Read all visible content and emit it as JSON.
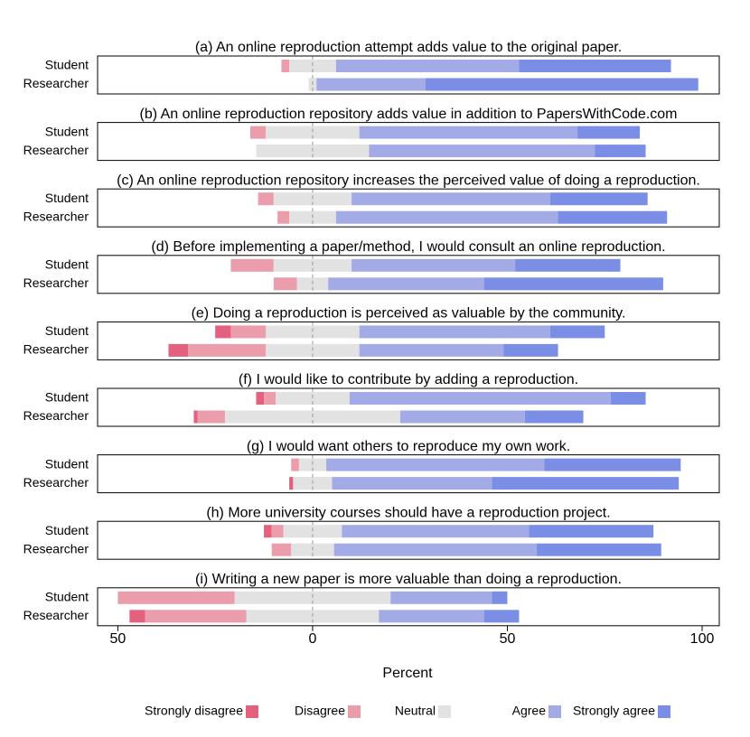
{
  "chart_data": {
    "type": "likert",
    "x_label": "Percent",
    "xlim": [
      -55.2,
      104.4
    ],
    "xticks": [
      {
        "value": -50,
        "label": "50"
      },
      0,
      50,
      100
    ],
    "series": [
      {
        "name": "Strongly disagree",
        "color": "#e4607f"
      },
      {
        "name": "Disagree",
        "color": "#eb9dab"
      },
      {
        "name": "Neutral",
        "color": "#e2e2e2"
      },
      {
        "name": "Agree",
        "color": "#a3abe6"
      },
      {
        "name": "Strongly agree",
        "color": "#7b8ee6"
      }
    ],
    "panels": [
      {
        "title": "(a) An online reproduction attempt adds value to the original paper.",
        "rows": [
          {
            "name": "Student",
            "values": [
              0,
              2,
              12,
              47,
              39
            ]
          },
          {
            "name": "Researcher",
            "values": [
              0,
              0,
              2,
              28,
              70
            ]
          }
        ]
      },
      {
        "title": "(b) An online reproduction repository adds value in addition to PapersWithCode.com",
        "rows": [
          {
            "name": "Student",
            "values": [
              0,
              4,
              24,
              56,
              16
            ]
          },
          {
            "name": "Researcher",
            "values": [
              0,
              0,
              29,
              58,
              13
            ]
          }
        ]
      },
      {
        "title": "(c) An online reproduction repository increases the perceived value of doing a reproduction.",
        "rows": [
          {
            "name": "Student",
            "values": [
              0,
              4,
              20,
              51,
              25
            ]
          },
          {
            "name": "Researcher",
            "values": [
              0,
              3,
              12,
              57,
              28
            ]
          }
        ]
      },
      {
        "title": "(d) Before implementing a paper/method, I would consult an online reproduction.",
        "rows": [
          {
            "name": "Student",
            "values": [
              0,
              11,
              20,
              42,
              27
            ]
          },
          {
            "name": "Researcher",
            "values": [
              0,
              6,
              8,
              40,
              46
            ]
          }
        ]
      },
      {
        "title": "(e) Doing a reproduction is perceived as valuable by the community.",
        "rows": [
          {
            "name": "Student",
            "values": [
              4,
              9,
              24,
              49,
              14
            ]
          },
          {
            "name": "Researcher",
            "values": [
              5,
              20,
              24,
              37,
              14
            ]
          }
        ]
      },
      {
        "title": "(f) I would like to contribute by adding a reproduction.",
        "rows": [
          {
            "name": "Student",
            "values": [
              2,
              3,
              19,
              67,
              9
            ]
          },
          {
            "name": "Researcher",
            "values": [
              1,
              7,
              45,
              32,
              15
            ]
          }
        ]
      },
      {
        "title": "(g) I would want others to reproduce my own work.",
        "rows": [
          {
            "name": "Student",
            "values": [
              0,
              2,
              7,
              56,
              35
            ]
          },
          {
            "name": "Researcher",
            "values": [
              1,
              0,
              10,
              41,
              48
            ]
          }
        ]
      },
      {
        "title": "(h) More university courses should have a reproduction project.",
        "rows": [
          {
            "name": "Student",
            "values": [
              2,
              3,
              15,
              48,
              32
            ]
          },
          {
            "name": "Researcher",
            "values": [
              0,
              5,
              11,
              52,
              32
            ]
          }
        ]
      },
      {
        "title": "(i) Writing a new paper is more valuable than doing a reproduction.",
        "rows": [
          {
            "name": "Student",
            "values": [
              0,
              30,
              40,
              26,
              4
            ]
          },
          {
            "name": "Researcher",
            "values": [
              4,
              26,
              34,
              27,
              9
            ]
          }
        ]
      }
    ]
  }
}
